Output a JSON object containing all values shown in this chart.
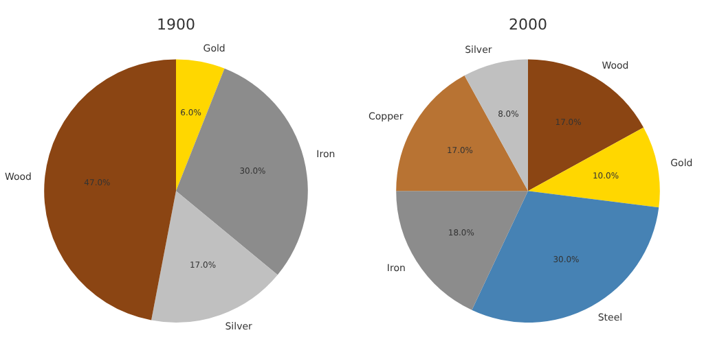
{
  "chart_data": [
    {
      "type": "pie",
      "title": "1900",
      "categories": [
        "Gold",
        "Iron",
        "Silver",
        "Wood"
      ],
      "values": [
        6,
        30,
        17,
        47
      ],
      "colors": [
        "#ffd700",
        "#8c8c8c",
        "#c0c0c0",
        "#8b4513"
      ],
      "value_labels": [
        "6.0%",
        "30.0%",
        "17.0%",
        "47.0%"
      ],
      "legend": false
    },
    {
      "type": "pie",
      "title": "2000",
      "categories": [
        "Wood",
        "Gold",
        "Steel",
        "Iron",
        "Copper",
        "Silver"
      ],
      "values": [
        17,
        10,
        30,
        18,
        17,
        8
      ],
      "colors": [
        "#8b4513",
        "#ffd700",
        "#4682b4",
        "#8c8c8c",
        "#b87333",
        "#c0c0c0"
      ],
      "value_labels": [
        "17.0%",
        "10.0%",
        "30.0%",
        "18.0%",
        "17.0%",
        "8.0%"
      ],
      "legend": false
    }
  ]
}
